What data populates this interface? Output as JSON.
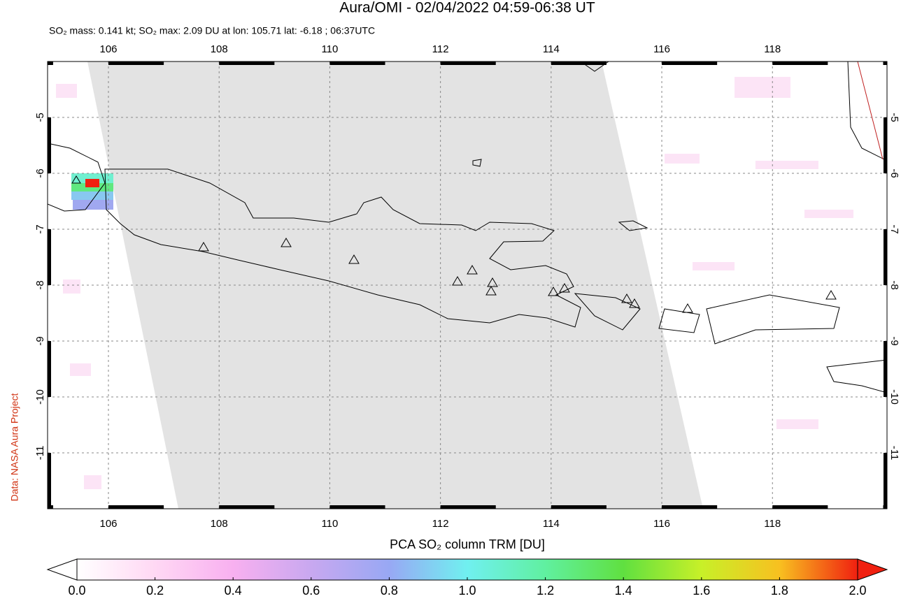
{
  "map": {
    "title": "Aura/OMI - 02/04/2022 04:59-06:38 UT",
    "subtitle": "SO₂ mass: 0.141 kt; SO₂ max: 2.09 DU at lon: 105.71 lat: -6.18 ; 06:37UTC",
    "credit": "Data: NASA Aura Project",
    "lonlim": [
      104.9,
      120.07
    ],
    "latlim": [
      -12,
      -4
    ],
    "lon_ticks": [
      106,
      108,
      110,
      112,
      114,
      116,
      118
    ],
    "lat_ticks": [
      -5,
      -6,
      -7,
      -8,
      -9,
      -10,
      -11
    ],
    "grid": true,
    "colorbar": {
      "label": "PCA SO₂ column TRM [DU]",
      "lim": [
        0,
        2
      ],
      "ticks": [
        {
          "value": 0,
          "label": "0.0"
        },
        0.2,
        0.4,
        0.6,
        0.8,
        {
          "value": 1,
          "label": "1.0"
        },
        1.2,
        1.4,
        1.6,
        1.8,
        {
          "value": 2,
          "label": "2.0"
        }
      ],
      "colors": [
        "#ffffff",
        "#ffd8f4",
        "#f8b0f0",
        "#c8a8f0",
        "#98a8f4",
        "#70f0f0",
        "#60f0a0",
        "#60e040",
        "#c8f028",
        "#f8c020",
        "#f02010"
      ]
    }
  }
}
